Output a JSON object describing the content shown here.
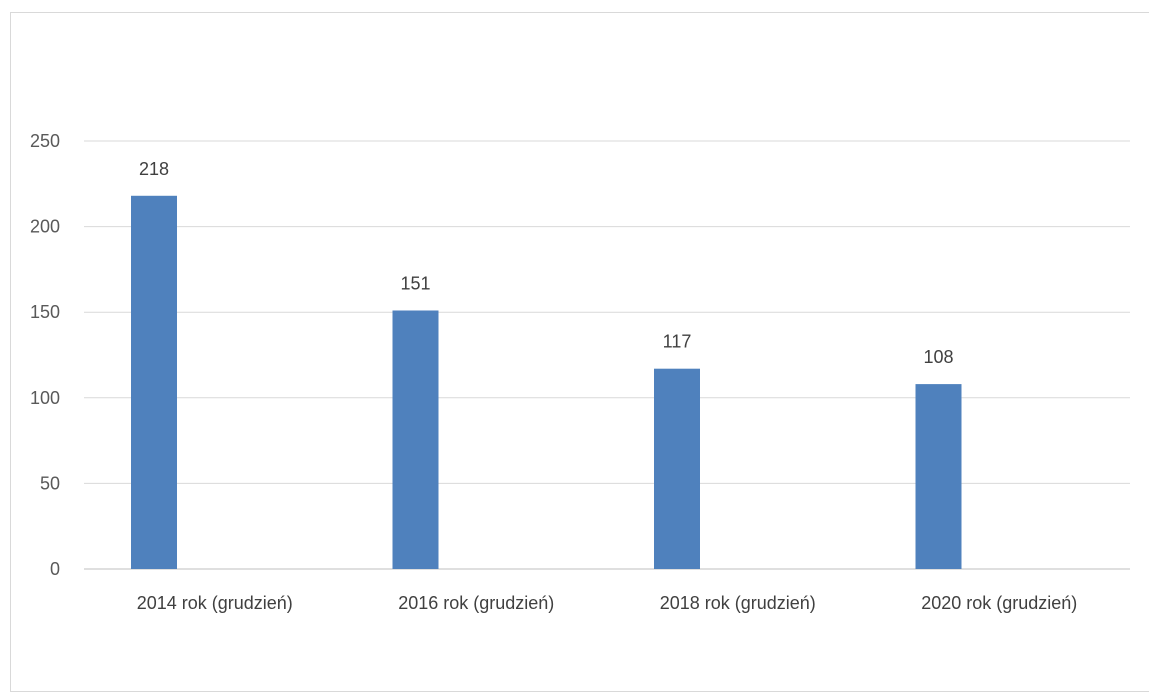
{
  "chart_data": {
    "type": "bar",
    "categories": [
      "2014 rok (grudzień)",
      "2016 rok (grudzień)",
      "2018 rok (grudzień)",
      "2020 rok (grudzień)"
    ],
    "values": [
      218,
      151,
      117,
      108
    ],
    "data_labels": [
      "218",
      "151",
      "117",
      "108"
    ],
    "title": "",
    "xlabel": "",
    "ylabel": "",
    "ylim": [
      0,
      250
    ],
    "yticks": [
      0,
      50,
      100,
      150,
      200,
      250
    ],
    "ytick_labels": [
      "0",
      "50",
      "100",
      "150",
      "200",
      "250"
    ],
    "grid": true,
    "legend": "none",
    "colors": {
      "bar": "#4f81bd",
      "grid": "#d9d9d9",
      "axis": "#bfbfbf"
    }
  }
}
